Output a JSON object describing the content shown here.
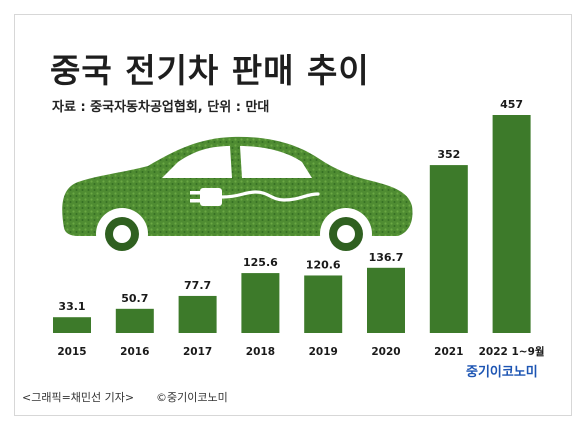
{
  "header": {
    "title": "중국 전기차 판매 추이",
    "source": "자료 : 중국자동차공업협회, 단위 : 만대"
  },
  "footer": {
    "brand": "중기이코노미",
    "credit": "<그래픽=채민선 기자>",
    "copyright": "©중기이코노미"
  },
  "colors": {
    "bar": "#3d7a2a",
    "car": "#4f8c32",
    "car_dark": "#2f6020",
    "brand": "#1d55b3"
  },
  "chart_data": {
    "type": "bar",
    "title": "중국 전기차 판매 추이",
    "categories": [
      "2015",
      "2016",
      "2017",
      "2018",
      "2019",
      "2020",
      "2021",
      "2022 1~9월"
    ],
    "values": [
      33.1,
      50.7,
      77.7,
      125.6,
      120.6,
      136.7,
      352,
      457
    ],
    "value_labels": [
      "33.1",
      "50.7",
      "77.7",
      "125.6",
      "120.6",
      "136.7",
      "352",
      "457"
    ],
    "unit": "만대",
    "ylim": [
      0,
      457
    ],
    "grid": false,
    "legend": "none"
  }
}
